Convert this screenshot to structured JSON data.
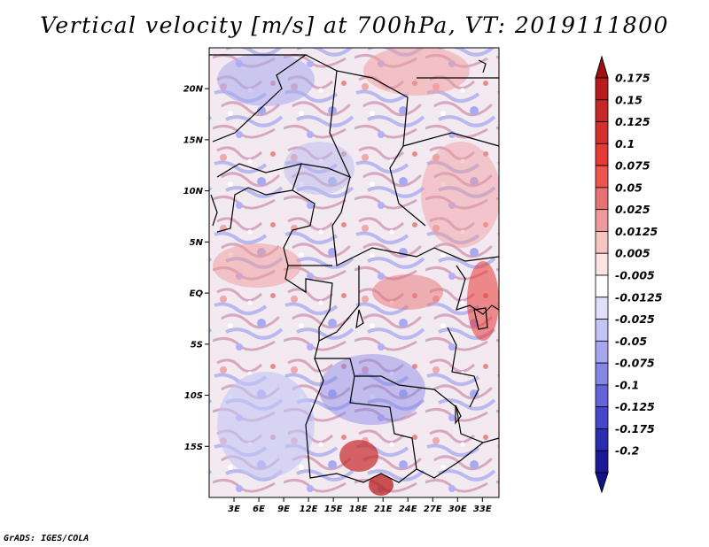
{
  "title": "Vertical velocity [m/s] at 700hPa, VT: 2019111800",
  "footer": "GrADS: IGES/COLA",
  "map": {
    "lat_range": [
      -20,
      24
    ],
    "lon_range": [
      0,
      35
    ],
    "lat_ticks": [
      {
        "value": 20,
        "label": "20N"
      },
      {
        "value": 15,
        "label": "15N"
      },
      {
        "value": 10,
        "label": "10N"
      },
      {
        "value": 5,
        "label": "5N"
      },
      {
        "value": 0,
        "label": "EQ"
      },
      {
        "value": -5,
        "label": "5S"
      },
      {
        "value": -10,
        "label": "10S"
      },
      {
        "value": -15,
        "label": "15S"
      }
    ],
    "lon_ticks": [
      {
        "value": 3,
        "label": "3E"
      },
      {
        "value": 6,
        "label": "6E"
      },
      {
        "value": 9,
        "label": "9E"
      },
      {
        "value": 12,
        "label": "12E"
      },
      {
        "value": 15,
        "label": "15E"
      },
      {
        "value": 18,
        "label": "18E"
      },
      {
        "value": 21,
        "label": "21E"
      },
      {
        "value": 24,
        "label": "24E"
      },
      {
        "value": 27,
        "label": "27E"
      },
      {
        "value": 30,
        "label": "30E"
      },
      {
        "value": 33,
        "label": "33E"
      }
    ]
  },
  "colorbar": {
    "levels": [
      {
        "label": "0.175",
        "color": "#b71c1c"
      },
      {
        "label": "0.15",
        "color": "#c62828"
      },
      {
        "label": "0.125",
        "color": "#d32f2f"
      },
      {
        "label": "0.1",
        "color": "#e53935"
      },
      {
        "label": "0.075",
        "color": "#ef5350"
      },
      {
        "label": "0.05",
        "color": "#e57373"
      },
      {
        "label": "0.025",
        "color": "#ef9a9a"
      },
      {
        "label": "0.0125",
        "color": "#f7c4c4"
      },
      {
        "label": "0.005",
        "color": "#fde4e4"
      },
      {
        "label": "-0.005",
        "color": "#ffffff"
      },
      {
        "label": "-0.0125",
        "color": "#e0e0fb"
      },
      {
        "label": "-0.025",
        "color": "#c5c5f5"
      },
      {
        "label": "-0.05",
        "color": "#a7a7ef"
      },
      {
        "label": "-0.075",
        "color": "#8585e6"
      },
      {
        "label": "-0.1",
        "color": "#6464da"
      },
      {
        "label": "-0.125",
        "color": "#4646c8"
      },
      {
        "label": "-0.175",
        "color": "#2c2cb0"
      },
      {
        "label": "-0.2",
        "color": "#1a1a98"
      }
    ],
    "top_arrow_color": "#a01010",
    "bottom_arrow_color": "#14148a"
  }
}
